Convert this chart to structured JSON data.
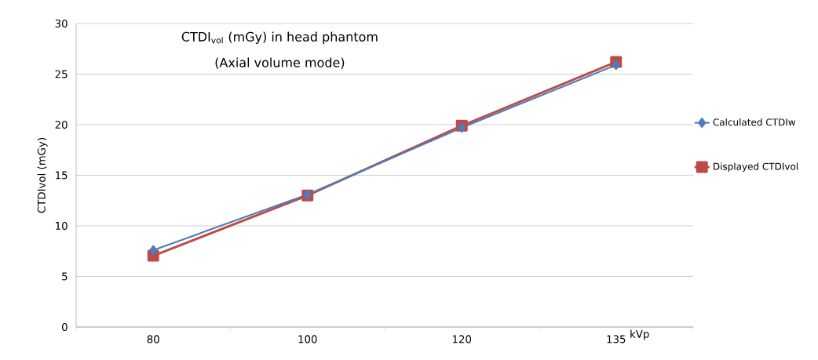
{
  "chart_data": {
    "type": "line",
    "title": "CTDI$_{vol}$ (mGy) in head phantom",
    "subtitle": "(Axial volume mode)",
    "xlabel": "kVp",
    "ylabel": "CTDIvol (mGy)",
    "categories": [
      "80",
      "100",
      "120",
      "135"
    ],
    "series": [
      {
        "name": "Calculated CTDIw",
        "color": "#4a7ebb",
        "marker": "diamond",
        "values": [
          7.6,
          13.1,
          19.7,
          25.9
        ]
      },
      {
        "name": "Displayed CTDIvol",
        "color": "#be4b48",
        "marker": "square",
        "values": [
          7.05,
          13.0,
          19.9,
          26.2
        ]
      }
    ],
    "ylim": [
      0,
      30
    ],
    "yticks": [
      0,
      5,
      10,
      15,
      20,
      25,
      30
    ],
    "grid": "y",
    "legend": "right",
    "line_style": "solid"
  }
}
